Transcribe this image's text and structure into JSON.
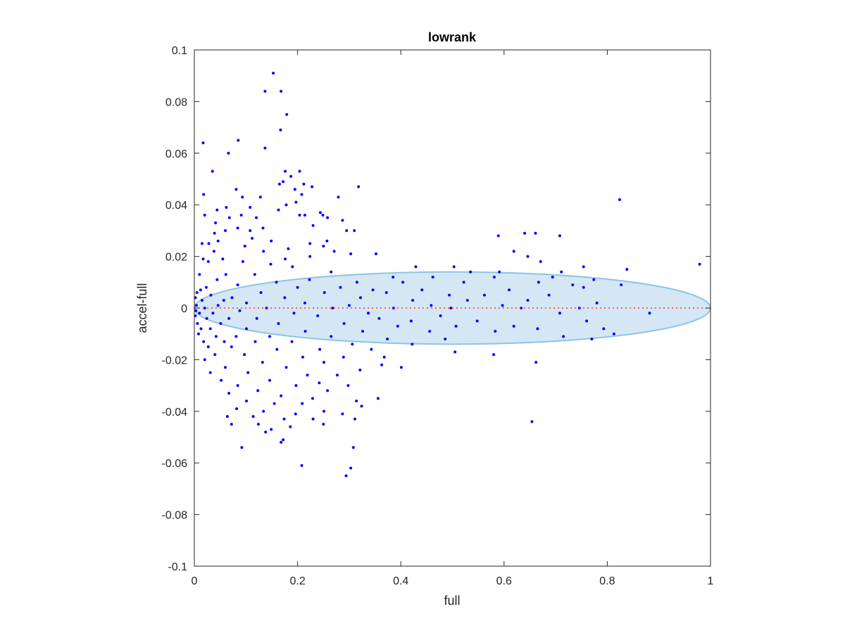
{
  "chart_data": {
    "type": "scatter",
    "title": "lowrank",
    "xlabel": "full",
    "ylabel": "accel-full",
    "xlim": [
      0,
      1
    ],
    "ylim": [
      -0.1,
      0.1
    ],
    "xticks": [
      0,
      0.2,
      0.4,
      0.6,
      0.8,
      1
    ],
    "xtick_labels": [
      "0",
      "0.2",
      "0.4",
      "0.6",
      "0.8",
      "1"
    ],
    "yticks": [
      -0.1,
      -0.08,
      -0.06,
      -0.04,
      -0.02,
      0,
      0.02,
      0.04,
      0.06,
      0.08,
      0.1
    ],
    "ytick_labels": [
      "-0.1",
      "-0.08",
      "-0.06",
      "-0.04",
      "-0.02",
      "0",
      "0.02",
      "0.04",
      "0.06",
      "0.08",
      "0.1"
    ],
    "grid": false,
    "reference_line": {
      "y": 0,
      "color": "#ff3333",
      "style": "dotted"
    },
    "ellipse": {
      "cx": 0.5,
      "cy": 0,
      "rx": 0.5,
      "ry": 0.014,
      "fill": "#d5e7f4",
      "stroke": "#8ec3e3"
    },
    "series": [
      {
        "color": "#0000ff",
        "points": [
          [
            0.153,
            0.091
          ],
          [
            0.137,
            0.084
          ],
          [
            0.168,
            0.084
          ],
          [
            0.179,
            0.075
          ],
          [
            0.167,
            0.069
          ],
          [
            0.085,
            0.065
          ],
          [
            0.137,
            0.062
          ],
          [
            0.017,
            0.064
          ],
          [
            0.066,
            0.06
          ],
          [
            0.035,
            0.053
          ],
          [
            0.176,
            0.053
          ],
          [
            0.204,
            0.053
          ],
          [
            0.187,
            0.051
          ],
          [
            0.165,
            0.048
          ],
          [
            0.172,
            0.049
          ],
          [
            0.318,
            0.047
          ],
          [
            0.212,
            0.048
          ],
          [
            0.195,
            0.046
          ],
          [
            0.228,
            0.047
          ],
          [
            0.081,
            0.046
          ],
          [
            0.018,
            0.044
          ],
          [
            0.093,
            0.043
          ],
          [
            0.208,
            0.044
          ],
          [
            0.128,
            0.043
          ],
          [
            0.279,
            0.043
          ],
          [
            0.824,
            0.042
          ],
          [
            0.178,
            0.04
          ],
          [
            0.197,
            0.041
          ],
          [
            0.062,
            0.039
          ],
          [
            0.108,
            0.039
          ],
          [
            0.044,
            0.038
          ],
          [
            0.163,
            0.038
          ],
          [
            0.244,
            0.037
          ],
          [
            0.249,
            0.036
          ],
          [
            0.02,
            0.036
          ],
          [
            0.091,
            0.036
          ],
          [
            0.204,
            0.036
          ],
          [
            0.214,
            0.036
          ],
          [
            0.258,
            0.035
          ],
          [
            0.287,
            0.034
          ],
          [
            0.068,
            0.035
          ],
          [
            0.12,
            0.035
          ],
          [
            0.041,
            0.033
          ],
          [
            0.23,
            0.032
          ],
          [
            0.133,
            0.031
          ],
          [
            0.084,
            0.031
          ],
          [
            0.295,
            0.03
          ],
          [
            0.31,
            0.03
          ],
          [
            0.06,
            0.03
          ],
          [
            0.108,
            0.03
          ],
          [
            0.039,
            0.029
          ],
          [
            0.661,
            0.029
          ],
          [
            0.64,
            0.029
          ],
          [
            0.589,
            0.028
          ],
          [
            0.708,
            0.028
          ],
          [
            0.112,
            0.027
          ],
          [
            0.046,
            0.026
          ],
          [
            0.149,
            0.026
          ],
          [
            0.028,
            0.025
          ],
          [
            0.224,
            0.025
          ],
          [
            0.015,
            0.025
          ],
          [
            0.257,
            0.026
          ],
          [
            0.098,
            0.024
          ],
          [
            0.182,
            0.023
          ],
          [
            0.25,
            0.024
          ],
          [
            0.619,
            0.022
          ],
          [
            0.038,
            0.022
          ],
          [
            0.134,
            0.022
          ],
          [
            0.271,
            0.022
          ],
          [
            0.352,
            0.021
          ],
          [
            0.303,
            0.021
          ],
          [
            0.646,
            0.02
          ],
          [
            0.176,
            0.019
          ],
          [
            0.055,
            0.019
          ],
          [
            0.224,
            0.02
          ],
          [
            0.017,
            0.019
          ],
          [
            0.094,
            0.018
          ],
          [
            0.027,
            0.018
          ],
          [
            0.979,
            0.017
          ],
          [
            0.671,
            0.018
          ],
          [
            0.754,
            0.016
          ],
          [
            0.838,
            0.015
          ],
          [
            0.503,
            0.016
          ],
          [
            0.429,
            0.016
          ],
          [
            0.148,
            0.017
          ],
          [
            0.19,
            0.016
          ],
          [
            0.711,
            0.014
          ],
          [
            0.591,
            0.014
          ],
          [
            0.535,
            0.014
          ],
          [
            0.265,
            0.014
          ],
          [
            0.01,
            0.013
          ],
          [
            0.061,
            0.013
          ],
          [
            0.117,
            0.013
          ],
          [
            0.385,
            0.012
          ],
          [
            0.462,
            0.012
          ],
          [
            0.581,
            0.012
          ],
          [
            0.694,
            0.012
          ],
          [
            0.774,
            0.011
          ],
          [
            0.223,
            0.011
          ],
          [
            0.044,
            0.011
          ],
          [
            0.159,
            0.01
          ],
          [
            0.315,
            0.01
          ],
          [
            0.404,
            0.01
          ],
          [
            0.522,
            0.01
          ],
          [
            0.667,
            0.01
          ],
          [
            0.733,
            0.009
          ],
          [
            0.827,
            0.009
          ],
          [
            0.084,
            0.009
          ],
          [
            0.023,
            0.008
          ],
          [
            0.2,
            0.008
          ],
          [
            0.283,
            0.008
          ],
          [
            0.346,
            0.007
          ],
          [
            0.441,
            0.007
          ],
          [
            0.61,
            0.007
          ],
          [
            0.754,
            0.008
          ],
          [
            0.012,
            0.007
          ],
          [
            0.129,
            0.006
          ],
          [
            0.252,
            0.006
          ],
          [
            0.372,
            0.006
          ],
          [
            0.494,
            0.005
          ],
          [
            0.562,
            0.005
          ],
          [
            0.687,
            0.005
          ],
          [
            0.005,
            0.006
          ],
          [
            0.032,
            0.005
          ],
          [
            0.073,
            0.004
          ],
          [
            0.175,
            0.004
          ],
          [
            0.322,
            0.004
          ],
          [
            0.423,
            0.003
          ],
          [
            0.529,
            0.003
          ],
          [
            0.646,
            0.003
          ],
          [
            0.78,
            0.002
          ],
          [
            0.002,
            0.004
          ],
          [
            0.015,
            0.003
          ],
          [
            0.057,
            0.003
          ],
          [
            0.101,
            0.002
          ],
          [
            0.214,
            0.002
          ],
          [
            0.3,
            0.001
          ],
          [
            0.459,
            0.001
          ],
          [
            0.597,
            0.001
          ],
          [
            0.882,
            -0.002
          ],
          [
            0.004,
            0.001
          ],
          [
            0.02,
            0.0
          ],
          [
            0.046,
            0.001
          ],
          [
            0.14,
            0.0
          ],
          [
            0.268,
            0.0
          ],
          [
            0.386,
            0.0
          ],
          [
            0.497,
            0.0
          ],
          [
            0.633,
            0.0
          ],
          [
            0.746,
            0.0
          ],
          [
            0.003,
            -0.001
          ],
          [
            0.01,
            -0.002
          ],
          [
            0.036,
            -0.002
          ],
          [
            0.088,
            -0.001
          ],
          [
            0.193,
            -0.002
          ],
          [
            0.337,
            -0.002
          ],
          [
            0.477,
            -0.003
          ],
          [
            0.708,
            -0.002
          ],
          [
            0.002,
            -0.003
          ],
          [
            0.024,
            -0.004
          ],
          [
            0.067,
            -0.004
          ],
          [
            0.121,
            -0.004
          ],
          [
            0.239,
            -0.003
          ],
          [
            0.358,
            -0.004
          ],
          [
            0.42,
            -0.005
          ],
          [
            0.548,
            -0.005
          ],
          [
            0.619,
            -0.007
          ],
          [
            0.76,
            -0.005
          ],
          [
            0.006,
            -0.006
          ],
          [
            0.051,
            -0.006
          ],
          [
            0.163,
            -0.006
          ],
          [
            0.29,
            -0.006
          ],
          [
            0.394,
            -0.007
          ],
          [
            0.507,
            -0.007
          ],
          [
            0.665,
            -0.008
          ],
          [
            0.793,
            -0.008
          ],
          [
            0.013,
            -0.008
          ],
          [
            0.031,
            -0.008
          ],
          [
            0.101,
            -0.008
          ],
          [
            0.215,
            -0.009
          ],
          [
            0.326,
            -0.009
          ],
          [
            0.456,
            -0.009
          ],
          [
            0.583,
            -0.009
          ],
          [
            0.715,
            -0.011
          ],
          [
            0.813,
            -0.01
          ],
          [
            0.008,
            -0.01
          ],
          [
            0.042,
            -0.011
          ],
          [
            0.081,
            -0.011
          ],
          [
            0.146,
            -0.011
          ],
          [
            0.265,
            -0.011
          ],
          [
            0.374,
            -0.012
          ],
          [
            0.486,
            -0.012
          ],
          [
            0.018,
            -0.013
          ],
          [
            0.058,
            -0.013
          ],
          [
            0.118,
            -0.013
          ],
          [
            0.189,
            -0.013
          ],
          [
            0.306,
            -0.014
          ],
          [
            0.422,
            -0.014
          ],
          [
            0.77,
            -0.012
          ],
          [
            0.027,
            -0.015
          ],
          [
            0.072,
            -0.015
          ],
          [
            0.16,
            -0.016
          ],
          [
            0.243,
            -0.016
          ],
          [
            0.343,
            -0.016
          ],
          [
            0.505,
            -0.017
          ],
          [
            0.58,
            -0.018
          ],
          [
            0.04,
            -0.018
          ],
          [
            0.097,
            -0.018
          ],
          [
            0.21,
            -0.019
          ],
          [
            0.289,
            -0.019
          ],
          [
            0.368,
            -0.019
          ],
          [
            0.662,
            -0.021
          ],
          [
            0.02,
            -0.02
          ],
          [
            0.132,
            -0.021
          ],
          [
            0.251,
            -0.021
          ],
          [
            0.363,
            -0.022
          ],
          [
            0.401,
            -0.023
          ],
          [
            0.06,
            -0.023
          ],
          [
            0.178,
            -0.023
          ],
          [
            0.321,
            -0.024
          ],
          [
            0.031,
            -0.025
          ],
          [
            0.104,
            -0.025
          ],
          [
            0.219,
            -0.026
          ],
          [
            0.277,
            -0.026
          ],
          [
            0.052,
            -0.028
          ],
          [
            0.146,
            -0.028
          ],
          [
            0.242,
            -0.029
          ],
          [
            0.084,
            -0.03
          ],
          [
            0.197,
            -0.03
          ],
          [
            0.298,
            -0.03
          ],
          [
            0.123,
            -0.032
          ],
          [
            0.258,
            -0.032
          ],
          [
            0.067,
            -0.033
          ],
          [
            0.168,
            -0.034
          ],
          [
            0.229,
            -0.035
          ],
          [
            0.314,
            -0.036
          ],
          [
            0.356,
            -0.035
          ],
          [
            0.101,
            -0.036
          ],
          [
            0.155,
            -0.037
          ],
          [
            0.209,
            -0.037
          ],
          [
            0.324,
            -0.038
          ],
          [
            0.082,
            -0.039
          ],
          [
            0.134,
            -0.04
          ],
          [
            0.251,
            -0.04
          ],
          [
            0.196,
            -0.041
          ],
          [
            0.287,
            -0.041
          ],
          [
            0.064,
            -0.042
          ],
          [
            0.114,
            -0.042
          ],
          [
            0.174,
            -0.043
          ],
          [
            0.23,
            -0.043
          ],
          [
            0.311,
            -0.043
          ],
          [
            0.654,
            -0.044
          ],
          [
            0.072,
            -0.045
          ],
          [
            0.124,
            -0.045
          ],
          [
            0.149,
            -0.047
          ],
          [
            0.186,
            -0.046
          ],
          [
            0.25,
            -0.045
          ],
          [
            0.138,
            -0.048
          ],
          [
            0.172,
            -0.051
          ],
          [
            0.168,
            -0.052
          ],
          [
            0.092,
            -0.054
          ],
          [
            0.308,
            -0.054
          ],
          [
            0.208,
            -0.061
          ],
          [
            0.303,
            -0.062
          ],
          [
            0.294,
            -0.065
          ]
        ]
      }
    ]
  }
}
